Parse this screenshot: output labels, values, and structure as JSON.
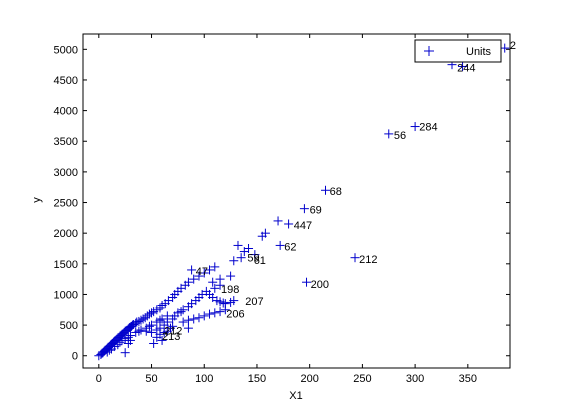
{
  "chart_data": {
    "type": "scatter",
    "title": "",
    "xlabel": "X1",
    "ylabel": "y",
    "xlim": [
      -15,
      390
    ],
    "ylim": [
      -200,
      5250
    ],
    "xticks": [
      0,
      50,
      100,
      150,
      200,
      250,
      300,
      350
    ],
    "yticks": [
      0,
      500,
      1000,
      1500,
      2000,
      2500,
      3000,
      3500,
      4000,
      4500,
      5000
    ],
    "grid": false,
    "legend_position": "top-right",
    "marker": "+",
    "color": "#0000cc",
    "series": [
      {
        "name": "Units",
        "points": [
          [
            0,
            0
          ],
          [
            2,
            20
          ],
          [
            3,
            40
          ],
          [
            4,
            50
          ],
          [
            5,
            70
          ],
          [
            6,
            90
          ],
          [
            7,
            100
          ],
          [
            8,
            120
          ],
          [
            9,
            140
          ],
          [
            10,
            150
          ],
          [
            11,
            170
          ],
          [
            12,
            190
          ],
          [
            13,
            200
          ],
          [
            14,
            220
          ],
          [
            15,
            240
          ],
          [
            16,
            250
          ],
          [
            17,
            270
          ],
          [
            18,
            290
          ],
          [
            19,
            300
          ],
          [
            20,
            320
          ],
          [
            21,
            330
          ],
          [
            22,
            350
          ],
          [
            23,
            360
          ],
          [
            24,
            380
          ],
          [
            25,
            400
          ],
          [
            26,
            410
          ],
          [
            27,
            420
          ],
          [
            28,
            440
          ],
          [
            29,
            460
          ],
          [
            30,
            470
          ],
          [
            31,
            480
          ],
          [
            32,
            500
          ],
          [
            33,
            510
          ],
          [
            35,
            530
          ],
          [
            36,
            550
          ],
          [
            38,
            560
          ],
          [
            40,
            580
          ],
          [
            42,
            600
          ],
          [
            44,
            620
          ],
          [
            46,
            650
          ],
          [
            48,
            680
          ],
          [
            50,
            700
          ],
          [
            52,
            720
          ],
          [
            55,
            750
          ],
          [
            58,
            780
          ],
          [
            60,
            820
          ],
          [
            63,
            850
          ],
          [
            66,
            900
          ],
          [
            70,
            950
          ],
          [
            72,
            1000
          ],
          [
            75,
            1050
          ],
          [
            78,
            1100
          ],
          [
            82,
            1150
          ],
          [
            85,
            1200
          ],
          [
            90,
            1250
          ],
          [
            95,
            1300
          ],
          [
            100,
            1350
          ],
          [
            105,
            1400
          ],
          [
            110,
            1450
          ],
          [
            88,
            1400
          ],
          [
            8,
            60
          ],
          [
            10,
            90
          ],
          [
            12,
            110
          ],
          [
            15,
            150
          ],
          [
            18,
            180
          ],
          [
            20,
            220
          ],
          [
            22,
            250
          ],
          [
            25,
            280
          ],
          [
            28,
            300
          ],
          [
            30,
            330
          ],
          [
            35,
            380
          ],
          [
            38,
            400
          ],
          [
            40,
            420
          ],
          [
            45,
            450
          ],
          [
            48,
            480
          ],
          [
            50,
            500
          ],
          [
            55,
            550
          ],
          [
            58,
            580
          ],
          [
            60,
            600
          ],
          [
            65,
            650
          ],
          [
            25,
            50
          ],
          [
            28,
            200
          ],
          [
            30,
            250
          ],
          [
            45,
            400
          ],
          [
            50,
            380
          ],
          [
            55,
            420
          ],
          [
            58,
            450
          ],
          [
            62,
            500
          ],
          [
            65,
            550
          ],
          [
            70,
            600
          ],
          [
            72,
            650
          ],
          [
            75,
            700
          ],
          [
            78,
            720
          ],
          [
            80,
            750
          ],
          [
            85,
            800
          ],
          [
            88,
            850
          ],
          [
            92,
            900
          ],
          [
            95,
            950
          ],
          [
            98,
            1000
          ],
          [
            102,
            1050
          ],
          [
            105,
            1000
          ],
          [
            108,
            950
          ],
          [
            112,
            900
          ],
          [
            115,
            880
          ],
          [
            118,
            860
          ],
          [
            120,
            850
          ],
          [
            125,
            870
          ],
          [
            128,
            900
          ],
          [
            110,
            1100
          ],
          [
            115,
            1150
          ],
          [
            80,
            550
          ],
          [
            85,
            580
          ],
          [
            90,
            600
          ],
          [
            95,
            620
          ],
          [
            100,
            650
          ],
          [
            105,
            680
          ],
          [
            110,
            700
          ],
          [
            115,
            720
          ],
          [
            120,
            750
          ],
          [
            85,
            450
          ],
          [
            55,
            300
          ],
          [
            58,
            350
          ],
          [
            62,
            380
          ],
          [
            65,
            400
          ],
          [
            68,
            450
          ],
          [
            70,
            480
          ],
          [
            60,
            250
          ],
          [
            52,
            200
          ],
          [
            108,
            1200
          ],
          [
            115,
            1250
          ],
          [
            125,
            1300
          ],
          [
            128,
            1550
          ],
          [
            135,
            1600
          ],
          [
            132,
            1800
          ],
          [
            138,
            1700
          ],
          [
            142,
            1750
          ],
          [
            148,
            1650
          ],
          [
            155,
            1950
          ],
          [
            158,
            2000
          ],
          [
            170,
            2200
          ],
          [
            180,
            2150
          ],
          [
            172,
            1800
          ],
          [
            195,
            2400
          ],
          [
            215,
            2700
          ],
          [
            243,
            1600
          ],
          [
            197,
            1200
          ],
          [
            275,
            3620
          ],
          [
            300,
            3740
          ],
          [
            335,
            4750
          ],
          [
            345,
            4720
          ],
          [
            385,
            5020
          ]
        ]
      }
    ],
    "point_labels": [
      {
        "text": "2",
        "x": 388,
        "y": 5070
      },
      {
        "text": "244",
        "x": 338,
        "y": 4700
      },
      {
        "text": "284",
        "x": 302,
        "y": 3740
      },
      {
        "text": "56",
        "x": 278,
        "y": 3600
      },
      {
        "text": "68",
        "x": 217,
        "y": 2690
      },
      {
        "text": "69",
        "x": 198,
        "y": 2390
      },
      {
        "text": "447",
        "x": 183,
        "y": 2130
      },
      {
        "text": "62",
        "x": 174,
        "y": 1780
      },
      {
        "text": "212",
        "x": 245,
        "y": 1580
      },
      {
        "text": "200",
        "x": 199,
        "y": 1170
      },
      {
        "text": "59",
        "x": 139,
        "y": 1600
      },
      {
        "text": "61",
        "x": 145,
        "y": 1560
      },
      {
        "text": "47",
        "x": 90,
        "y": 1380
      },
      {
        "text": "198",
        "x": 114,
        "y": 1090
      },
      {
        "text": "207",
        "x": 137,
        "y": 890
      },
      {
        "text": "206",
        "x": 119,
        "y": 690
      },
      {
        "text": "213",
        "x": 58,
        "y": 320
      },
      {
        "text": "212",
        "x": 60,
        "y": 410
      }
    ]
  },
  "legend": {
    "items": [
      {
        "label": "Units"
      }
    ]
  }
}
